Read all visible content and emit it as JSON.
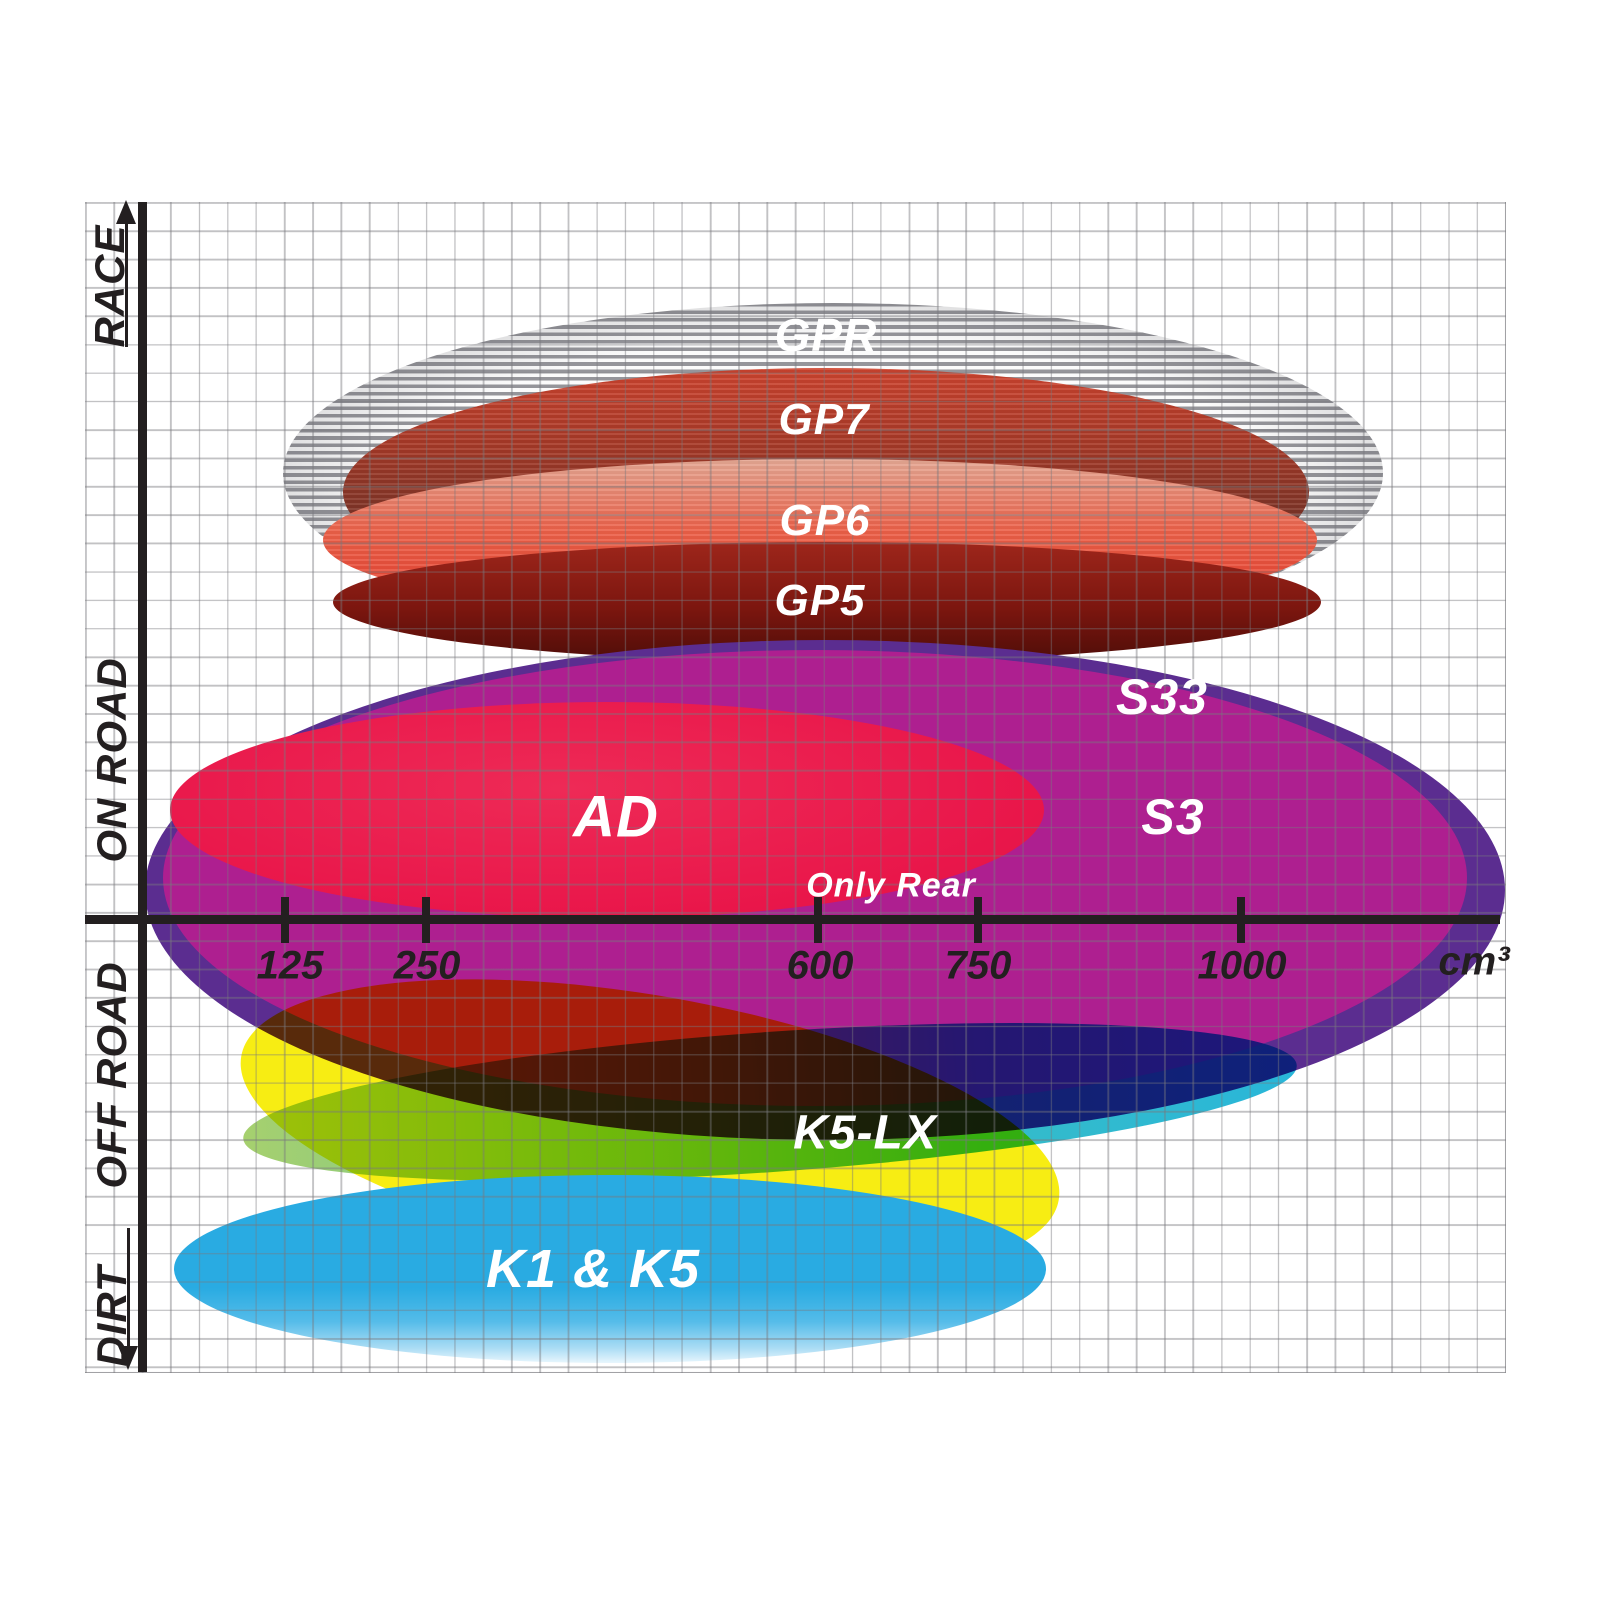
{
  "y_axis": {
    "race": "RACE",
    "on_road": "ON ROAD",
    "off_road": "OFF ROAD",
    "dirt": "DIRT"
  },
  "x_axis": {
    "ticks": [
      "125",
      "250",
      "600",
      "750",
      "1000"
    ],
    "unit": "cm³"
  },
  "ellipses": [
    {
      "id": "gpr",
      "label": "GPR",
      "style": "grey horizontal hatch",
      "color": "#95959a"
    },
    {
      "id": "gp7",
      "label": "GP7",
      "style": "red to dark brown gradient",
      "color_top": "#d04530",
      "color_bottom": "#5c2a20"
    },
    {
      "id": "gp6",
      "label": "GP6",
      "style": "salmon to red gradient",
      "color_top": "#e6a894",
      "color_bottom": "#d63a2b"
    },
    {
      "id": "gp5",
      "label": "GP5",
      "style": "dark maroon",
      "color": "#7c160f"
    },
    {
      "id": "s33",
      "label": "S33",
      "style": "purple",
      "color": "#5b2d90"
    },
    {
      "id": "s3",
      "label": "S3",
      "style": "magenta",
      "color": "#ae1f90"
    },
    {
      "id": "ad",
      "label": "AD",
      "note": "Only Rear",
      "style": "crimson red",
      "color": "#e9164a"
    },
    {
      "id": "k5lx",
      "label": "K5-LX",
      "style": "green to cyan gradient",
      "color_left": "#a6d06e",
      "color_right": "#29b6d9"
    },
    {
      "id": "yellow",
      "label": "",
      "style": "yellow rim ellipse (unlabeled)",
      "color": "#f7ed13"
    },
    {
      "id": "k1k5",
      "label": "K1 & K5",
      "style": "cyan blue fading to white at bottom",
      "color": "#29abe2"
    }
  ],
  "chart_data": {
    "type": "area",
    "subtype": "brake-pad compound positioning map (overlapping ellipses on terrain vs engine displacement)",
    "xlabel": "cm³",
    "x_ticks": [
      125,
      250,
      600,
      750,
      1000
    ],
    "x_scale_note": "non-linear schematic scale",
    "y_bands_top_to_bottom": [
      "RACE",
      "ON ROAD",
      "OFF ROAD",
      "DIRT"
    ],
    "grid": true,
    "series": [
      {
        "name": "GPR",
        "terrain": [
          "RACE"
        ],
        "cc_range": [
          125,
          1150
        ],
        "style": "grey horizontal hatch"
      },
      {
        "name": "GP7",
        "terrain": [
          "RACE"
        ],
        "cc_range": [
          175,
          1080
        ],
        "style": "dark red"
      },
      {
        "name": "GP6",
        "terrain": [
          "RACE"
        ],
        "cc_range": [
          165,
          1090
        ],
        "style": "light red"
      },
      {
        "name": "GP5",
        "terrain": [
          "RACE",
          "ON ROAD"
        ],
        "cc_range": [
          170,
          1090
        ],
        "style": "dark maroon"
      },
      {
        "name": "S33",
        "terrain": [
          "ON ROAD",
          "OFF ROAD"
        ],
        "cc_range": [
          50,
          1250
        ],
        "style": "purple"
      },
      {
        "name": "S3",
        "terrain": [
          "ON ROAD",
          "OFF ROAD"
        ],
        "cc_range": [
          60,
          1200
        ],
        "style": "magenta"
      },
      {
        "name": "AD",
        "terrain": [
          "ON ROAD"
        ],
        "cc_range": [
          60,
          800
        ],
        "note": "Only Rear",
        "style": "red"
      },
      {
        "name": "K5-LX",
        "terrain": [
          "OFF ROAD"
        ],
        "cc_range": [
          100,
          1030
        ],
        "style": "green-teal gradient"
      },
      {
        "name": "unlabeled-yellow",
        "terrain": [
          "OFF ROAD",
          "DIRT"
        ],
        "cc_range": [
          100,
          800
        ],
        "style": "yellow"
      },
      {
        "name": "K1 & K5",
        "terrain": [
          "DIRT"
        ],
        "cc_range": [
          60,
          790
        ],
        "style": "cyan blue"
      }
    ]
  }
}
